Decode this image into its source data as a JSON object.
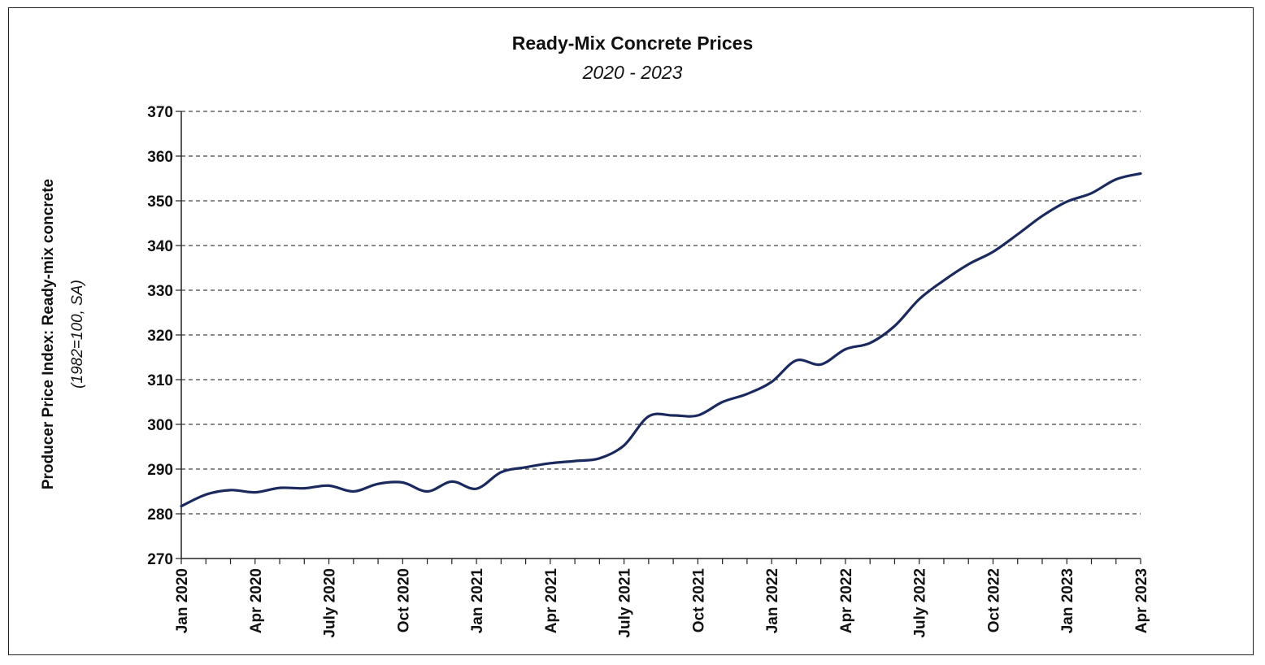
{
  "chart_data": {
    "type": "line",
    "title": "Ready-Mix Concrete Prices",
    "subtitle": "2020 - 2023",
    "ylabel": "Producer Price Index: Ready-mix concrete",
    "ylabel_note": "(1982=100, SA)",
    "xlabel": "",
    "ylim": [
      270,
      370
    ],
    "yticks": [
      270,
      280,
      290,
      300,
      310,
      320,
      330,
      340,
      350,
      360,
      370
    ],
    "grid": "horizontal dashed",
    "legend": "none",
    "x_tick_labels": [
      "Jan 2020",
      "Apr 2020",
      "July 2020",
      "Oct 2020",
      "Jan 2021",
      "Apr 2021",
      "July 2021",
      "Oct 2021",
      "Jan 2022",
      "Apr 2022",
      "July 2022",
      "Oct 2022",
      "Jan 2023",
      "Apr 2023"
    ],
    "x": [
      "Jan 2020",
      "Feb 2020",
      "Mar 2020",
      "Apr 2020",
      "May 2020",
      "Jun 2020",
      "Jul 2020",
      "Aug 2020",
      "Sep 2020",
      "Oct 2020",
      "Nov 2020",
      "Dec 2020",
      "Jan 2021",
      "Feb 2021",
      "Mar 2021",
      "Apr 2021",
      "May 2021",
      "Jun 2021",
      "Jul 2021",
      "Aug 2021",
      "Sep 2021",
      "Oct 2021",
      "Nov 2021",
      "Dec 2021",
      "Jan 2022",
      "Feb 2022",
      "Mar 2022",
      "Apr 2022",
      "May 2022",
      "Jun 2022",
      "Jul 2022",
      "Aug 2022",
      "Sep 2022",
      "Oct 2022",
      "Nov 2022",
      "Dec 2022",
      "Jan 2023",
      "Feb 2023",
      "Mar 2023",
      "Apr 2023"
    ],
    "series": [
      {
        "color": "#1b2a5e",
        "values": [
          281.7,
          284.3,
          285.3,
          284.8,
          285.8,
          285.7,
          286.3,
          285.0,
          286.7,
          287.0,
          285.0,
          287.2,
          285.6,
          289.3,
          290.4,
          291.3,
          291.8,
          292.4,
          295.3,
          301.8,
          302.0,
          302.0,
          305.0,
          306.8,
          309.5,
          314.3,
          313.4,
          316.8,
          318.2,
          322.0,
          328.0,
          332.2,
          335.8,
          338.6,
          342.5,
          346.6,
          349.8,
          351.7,
          354.8,
          356.1
        ]
      }
    ]
  }
}
